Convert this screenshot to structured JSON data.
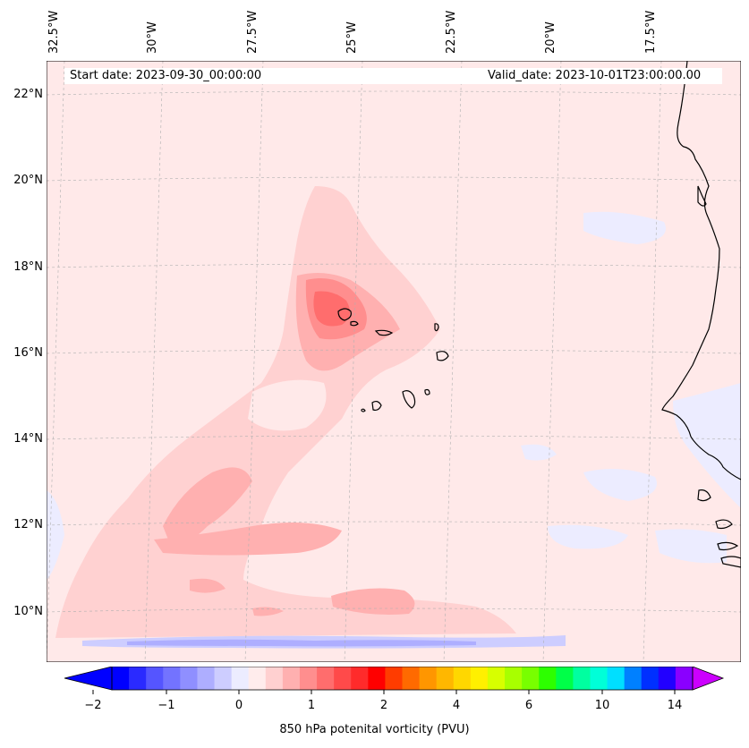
{
  "map": {
    "start_date": "Start date: 2023-09-30_00:00:00",
    "valid_date": "Valid_date: 2023-10-01T23:00:00.00",
    "lon_labels": [
      "32.5°W",
      "30°W",
      "27.5°W",
      "25°W",
      "22.5°W",
      "20°W",
      "17.5°W"
    ],
    "lat_labels": [
      "22°N",
      "20°N",
      "18°N",
      "16°N",
      "14°N",
      "12°N",
      "10°N"
    ],
    "colorbar": {
      "title": "850 hPa potenital vorticity (PVU)",
      "tick_labels": [
        "−2",
        "−1",
        "0",
        "1",
        "2",
        "4",
        "6",
        "10",
        "14"
      ],
      "colors": [
        "#0000ff",
        "#2a2aff",
        "#5555ff",
        "#7373ff",
        "#8f8fff",
        "#aeaeff",
        "#cdcdff",
        "#ececff",
        "#ffecec",
        "#ffd0d0",
        "#ffb0b0",
        "#ff8e8e",
        "#ff6d6d",
        "#ff4a4a",
        "#ff2b2b",
        "#ff0000",
        "#ff3c00",
        "#ff6a00",
        "#ff9600",
        "#ffb700",
        "#ffd700",
        "#fff000",
        "#d7ff00",
        "#a8ff00",
        "#78ff00",
        "#2dff00",
        "#00ff48",
        "#00ffa0",
        "#00ffd8",
        "#00dfff",
        "#0080ff",
        "#0030ff",
        "#2200ff",
        "#8a00ff"
      ],
      "under_color": "#0000ff",
      "over_color": "#cc00ff"
    }
  }
}
